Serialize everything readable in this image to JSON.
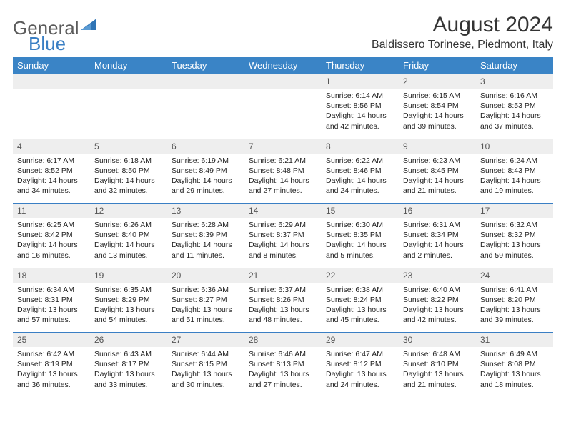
{
  "logo": {
    "text1": "General",
    "text2": "Blue",
    "mark_color": "#2f74b5"
  },
  "header": {
    "month_title": "August 2024",
    "location": "Baldissero Torinese, Piedmont, Italy"
  },
  "dow": [
    "Sunday",
    "Monday",
    "Tuesday",
    "Wednesday",
    "Thursday",
    "Friday",
    "Saturday"
  ],
  "colors": {
    "header_bg": "#3a84c6",
    "header_fg": "#ffffff",
    "daynum_bg": "#eeeeee",
    "row_border": "#3a7fc4",
    "text": "#222222"
  },
  "weeks": [
    [
      null,
      null,
      null,
      null,
      {
        "n": "1",
        "sr": "6:14 AM",
        "ss": "8:56 PM",
        "dh": "14",
        "dm": "42"
      },
      {
        "n": "2",
        "sr": "6:15 AM",
        "ss": "8:54 PM",
        "dh": "14",
        "dm": "39"
      },
      {
        "n": "3",
        "sr": "6:16 AM",
        "ss": "8:53 PM",
        "dh": "14",
        "dm": "37"
      }
    ],
    [
      {
        "n": "4",
        "sr": "6:17 AM",
        "ss": "8:52 PM",
        "dh": "14",
        "dm": "34"
      },
      {
        "n": "5",
        "sr": "6:18 AM",
        "ss": "8:50 PM",
        "dh": "14",
        "dm": "32"
      },
      {
        "n": "6",
        "sr": "6:19 AM",
        "ss": "8:49 PM",
        "dh": "14",
        "dm": "29"
      },
      {
        "n": "7",
        "sr": "6:21 AM",
        "ss": "8:48 PM",
        "dh": "14",
        "dm": "27"
      },
      {
        "n": "8",
        "sr": "6:22 AM",
        "ss": "8:46 PM",
        "dh": "14",
        "dm": "24"
      },
      {
        "n": "9",
        "sr": "6:23 AM",
        "ss": "8:45 PM",
        "dh": "14",
        "dm": "21"
      },
      {
        "n": "10",
        "sr": "6:24 AM",
        "ss": "8:43 PM",
        "dh": "14",
        "dm": "19"
      }
    ],
    [
      {
        "n": "11",
        "sr": "6:25 AM",
        "ss": "8:42 PM",
        "dh": "14",
        "dm": "16"
      },
      {
        "n": "12",
        "sr": "6:26 AM",
        "ss": "8:40 PM",
        "dh": "14",
        "dm": "13"
      },
      {
        "n": "13",
        "sr": "6:28 AM",
        "ss": "8:39 PM",
        "dh": "14",
        "dm": "11"
      },
      {
        "n": "14",
        "sr": "6:29 AM",
        "ss": "8:37 PM",
        "dh": "14",
        "dm": "8"
      },
      {
        "n": "15",
        "sr": "6:30 AM",
        "ss": "8:35 PM",
        "dh": "14",
        "dm": "5"
      },
      {
        "n": "16",
        "sr": "6:31 AM",
        "ss": "8:34 PM",
        "dh": "14",
        "dm": "2"
      },
      {
        "n": "17",
        "sr": "6:32 AM",
        "ss": "8:32 PM",
        "dh": "13",
        "dm": "59"
      }
    ],
    [
      {
        "n": "18",
        "sr": "6:34 AM",
        "ss": "8:31 PM",
        "dh": "13",
        "dm": "57"
      },
      {
        "n": "19",
        "sr": "6:35 AM",
        "ss": "8:29 PM",
        "dh": "13",
        "dm": "54"
      },
      {
        "n": "20",
        "sr": "6:36 AM",
        "ss": "8:27 PM",
        "dh": "13",
        "dm": "51"
      },
      {
        "n": "21",
        "sr": "6:37 AM",
        "ss": "8:26 PM",
        "dh": "13",
        "dm": "48"
      },
      {
        "n": "22",
        "sr": "6:38 AM",
        "ss": "8:24 PM",
        "dh": "13",
        "dm": "45"
      },
      {
        "n": "23",
        "sr": "6:40 AM",
        "ss": "8:22 PM",
        "dh": "13",
        "dm": "42"
      },
      {
        "n": "24",
        "sr": "6:41 AM",
        "ss": "8:20 PM",
        "dh": "13",
        "dm": "39"
      }
    ],
    [
      {
        "n": "25",
        "sr": "6:42 AM",
        "ss": "8:19 PM",
        "dh": "13",
        "dm": "36"
      },
      {
        "n": "26",
        "sr": "6:43 AM",
        "ss": "8:17 PM",
        "dh": "13",
        "dm": "33"
      },
      {
        "n": "27",
        "sr": "6:44 AM",
        "ss": "8:15 PM",
        "dh": "13",
        "dm": "30"
      },
      {
        "n": "28",
        "sr": "6:46 AM",
        "ss": "8:13 PM",
        "dh": "13",
        "dm": "27"
      },
      {
        "n": "29",
        "sr": "6:47 AM",
        "ss": "8:12 PM",
        "dh": "13",
        "dm": "24"
      },
      {
        "n": "30",
        "sr": "6:48 AM",
        "ss": "8:10 PM",
        "dh": "13",
        "dm": "21"
      },
      {
        "n": "31",
        "sr": "6:49 AM",
        "ss": "8:08 PM",
        "dh": "13",
        "dm": "18"
      }
    ]
  ],
  "labels": {
    "sunrise": "Sunrise: ",
    "sunset": "Sunset: ",
    "daylight_prefix": "Daylight: ",
    "hours_word": " hours and ",
    "minutes_word": " minutes."
  }
}
